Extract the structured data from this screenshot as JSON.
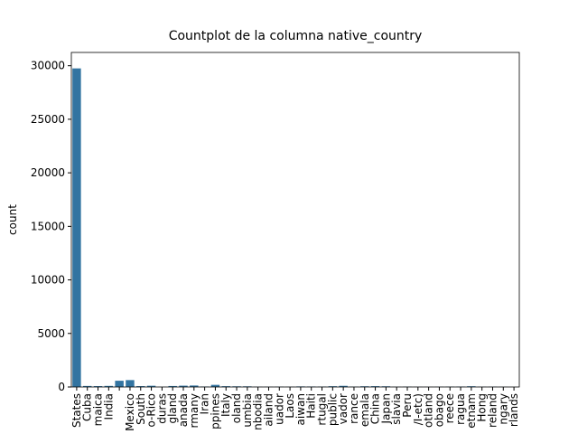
{
  "chart_data": {
    "type": "bar",
    "title": "Countplot de la columna native_country",
    "y_label": "count",
    "color": "#3274a1",
    "categories": [
      "States",
      "Cuba",
      "maica",
      "India",
      null,
      "Mexico",
      "South",
      "o-Rico",
      "duras",
      "gland",
      "anada",
      "rmany",
      "Iran",
      "ppines",
      "Italy",
      "oland",
      "umbia",
      "nbodia",
      "ailand",
      "uador",
      "Laos",
      "aiwan",
      "Haiti",
      "rtugal",
      "public",
      "vador",
      "rance",
      "emala",
      "China",
      "Japan",
      "slavia",
      "Peru",
      "/I-etc)",
      "otland",
      "obago",
      "reece",
      "ragua",
      "etnam",
      "Hong",
      "reland",
      "ngary",
      "rlands"
    ],
    "values": [
      29750,
      95,
      81,
      100,
      583,
      643,
      80,
      114,
      13,
      90,
      121,
      137,
      43,
      198,
      73,
      60,
      59,
      19,
      18,
      28,
      18,
      51,
      44,
      37,
      70,
      106,
      29,
      64,
      75,
      62,
      16,
      31,
      14,
      12,
      19,
      29,
      34,
      67,
      20,
      24,
      13,
      1
    ],
    "ylim": [
      0,
      31240
    ],
    "yticks": [
      0,
      5000,
      10000,
      15000,
      20000,
      25000,
      30000
    ]
  }
}
